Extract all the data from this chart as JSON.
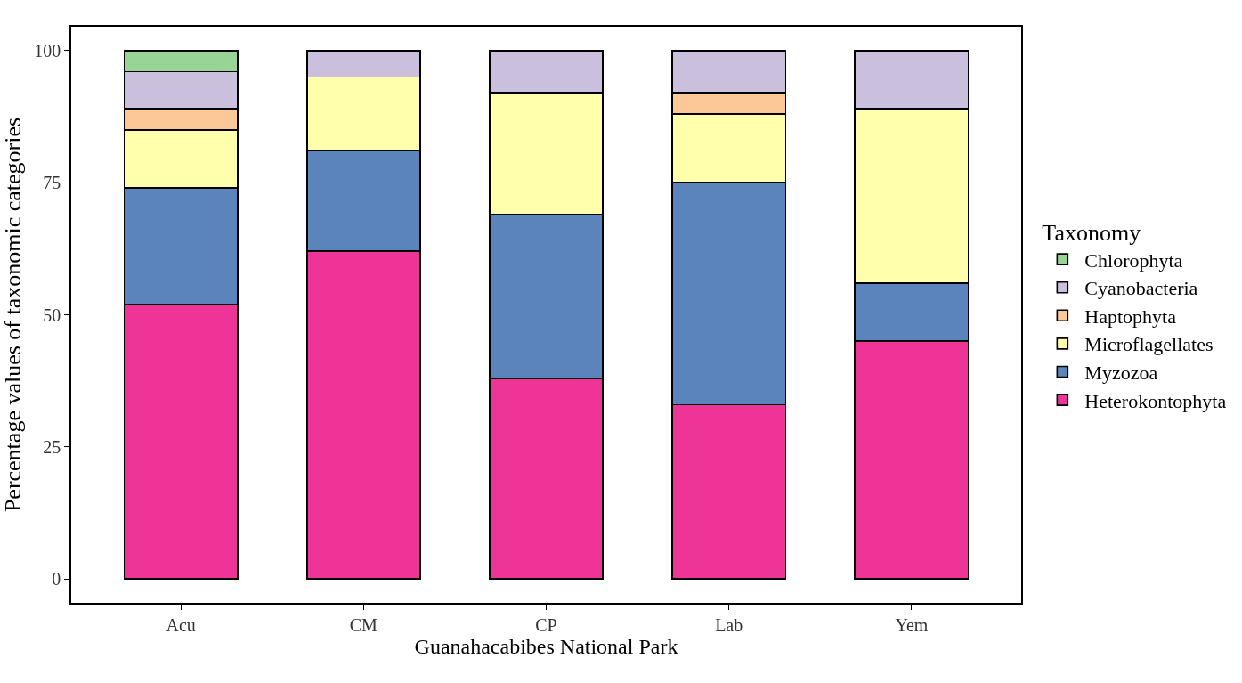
{
  "chart_data": {
    "type": "bar",
    "stacked": true,
    "xlabel": "Guanahacabibes National Park",
    "ylabel": "Percentage values of taxonomic categories",
    "legend_title": "Taxonomy",
    "categories": [
      "Acu",
      "CM",
      "CP",
      "Lab",
      "Yem"
    ],
    "series": [
      {
        "name": "Heterokontophyta",
        "color": "#ee3597",
        "values": [
          52,
          62,
          38,
          33,
          45
        ]
      },
      {
        "name": "Myzozoa",
        "color": "#5c84bc",
        "values": [
          22,
          19,
          31,
          42,
          11
        ]
      },
      {
        "name": "Microflagellates",
        "color": "#ffffac",
        "values": [
          11,
          14,
          23,
          13,
          33
        ]
      },
      {
        "name": "Haptophyta",
        "color": "#fdc898",
        "values": [
          4,
          null,
          null,
          4,
          null
        ]
      },
      {
        "name": "Cyanobacteria",
        "color": "#cbbfde",
        "values": [
          7,
          5,
          8,
          8,
          11
        ]
      },
      {
        "name": "Chlorophyta",
        "color": "#98d594",
        "values": [
          4,
          null,
          null,
          null,
          null
        ]
      }
    ],
    "ylim": [
      -4.5,
      104.5
    ],
    "yticks": [
      0,
      25,
      50,
      75,
      100
    ],
    "legend": "right"
  }
}
